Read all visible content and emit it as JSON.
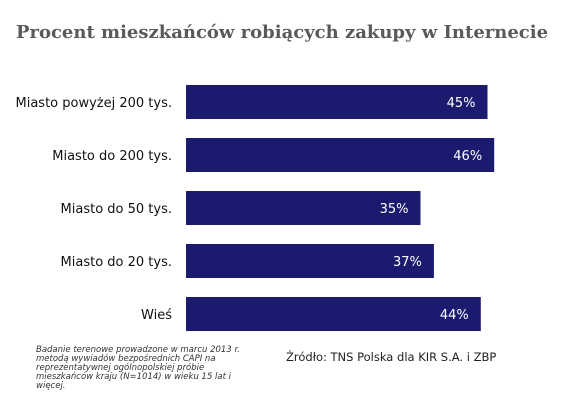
{
  "chart_data": {
    "type": "bar",
    "orientation": "horizontal",
    "title": "Procent mieszkańców robiących zakupy w Internecie",
    "categories": [
      "Miasto powyżej 200 tys.",
      "Miasto do 200 tys.",
      "Miasto do 50 tys.",
      "Miasto do 20 tys.",
      "Wieś"
    ],
    "values": [
      45,
      46,
      35,
      37,
      44
    ],
    "value_labels": [
      "45%",
      "46%",
      "35%",
      "37%",
      "44%"
    ],
    "xlim": [
      0,
      50
    ],
    "grid": false,
    "legend": "none",
    "bar_color": "#1a1a6e"
  },
  "footer": {
    "note": "Badanie terenowe prowadzone w marcu 2013 r. metodą wywiadów bezpośrednich CAPI na reprezentatywnej ogólnopolskiej próbie mieszkańców kraju (N=1014) w wieku 15 lat i więcej.",
    "source": "Źródło: TNS Polska dla KIR S.A. i ZBP"
  }
}
